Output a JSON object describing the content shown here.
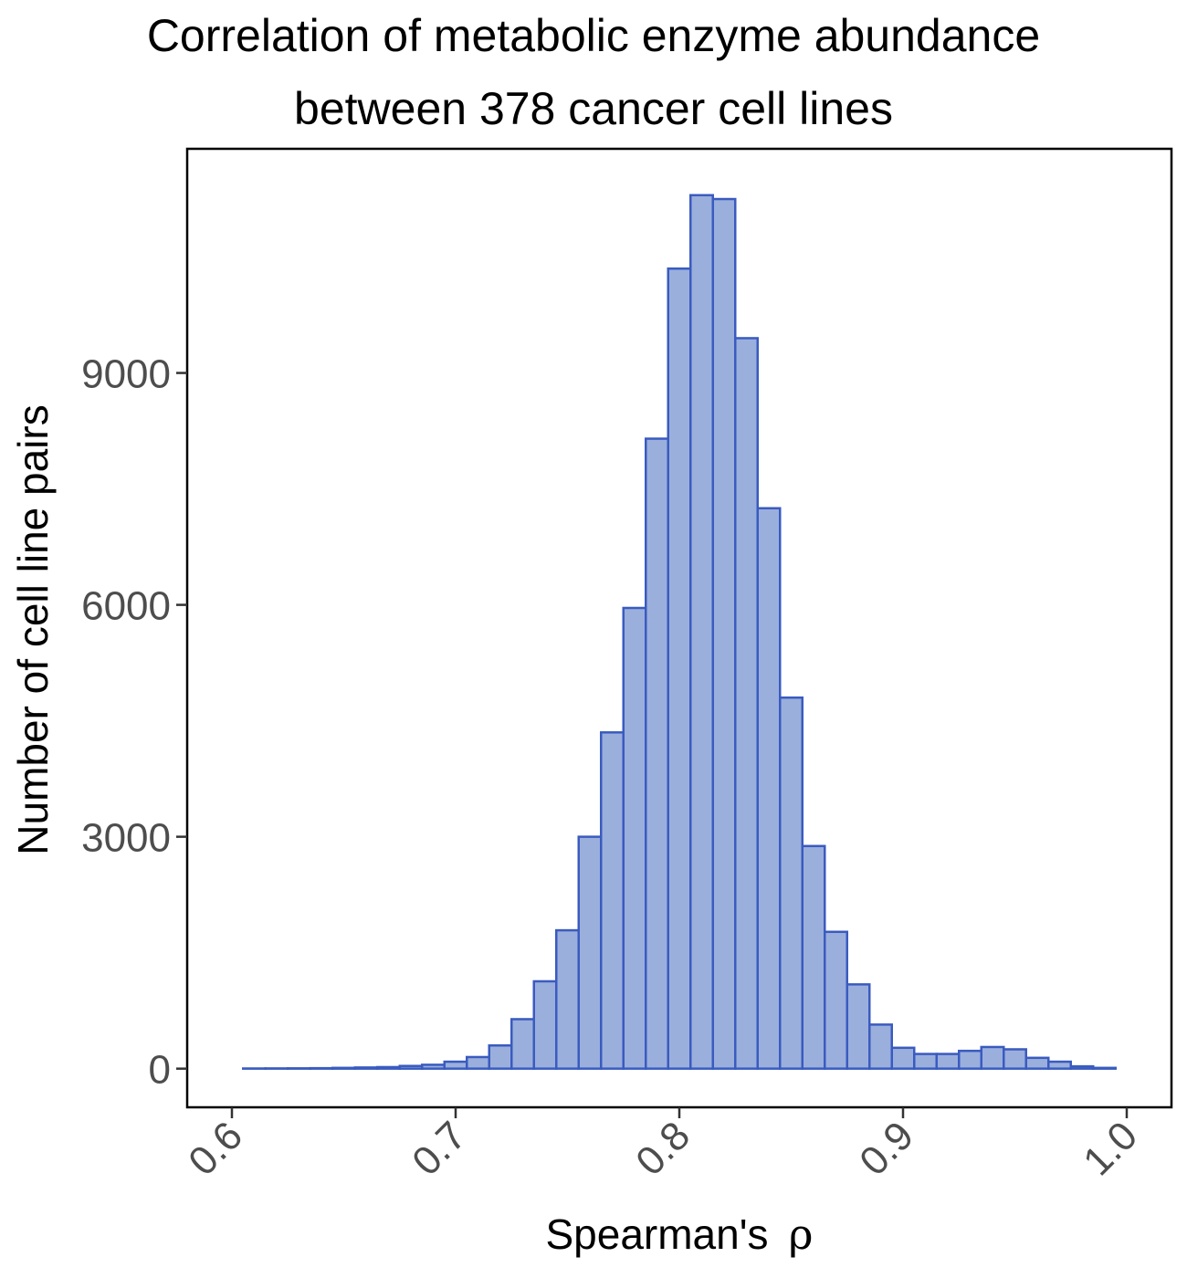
{
  "chart_data": {
    "type": "bar",
    "title_line1": "Correlation of metabolic enzyme abundance",
    "title_line2": "between 378 cancer cell lines",
    "xlabel": "Spearman's",
    "xlabel_symbol": "ρ",
    "ylabel": "Number of cell line pairs",
    "xlim": [
      0.58,
      1.02
    ],
    "ylim": [
      -500,
      11900
    ],
    "x_ticks": [
      0.6,
      0.7,
      0.8,
      0.9,
      1.0
    ],
    "x_tick_labels": [
      "0.6",
      "0.7",
      "0.8",
      "0.9",
      "1.0"
    ],
    "y_ticks": [
      0,
      3000,
      6000,
      9000
    ],
    "y_tick_labels": [
      "0",
      "3000",
      "6000",
      "9000"
    ],
    "bin_width": 0.01,
    "bin_starts": [
      0.605,
      0.615,
      0.625,
      0.635,
      0.645,
      0.655,
      0.665,
      0.675,
      0.685,
      0.695,
      0.705,
      0.715,
      0.725,
      0.735,
      0.745,
      0.755,
      0.765,
      0.775,
      0.785,
      0.795,
      0.805,
      0.815,
      0.825,
      0.835,
      0.845,
      0.855,
      0.865,
      0.875,
      0.885,
      0.895,
      0.905,
      0.915,
      0.925,
      0.935,
      0.945,
      0.955,
      0.965,
      0.975,
      0.985
    ],
    "counts": [
      2,
      3,
      4,
      6,
      10,
      15,
      20,
      35,
      50,
      90,
      150,
      300,
      640,
      1130,
      1790,
      3000,
      4350,
      5960,
      8150,
      10350,
      11300,
      11250,
      9450,
      7250,
      4800,
      2880,
      1770,
      1090,
      570,
      270,
      190,
      190,
      230,
      280,
      250,
      140,
      90,
      30,
      10
    ],
    "grid": false,
    "colors": {
      "fill": "#9bafdd",
      "stroke": "#3a5bbf"
    }
  }
}
